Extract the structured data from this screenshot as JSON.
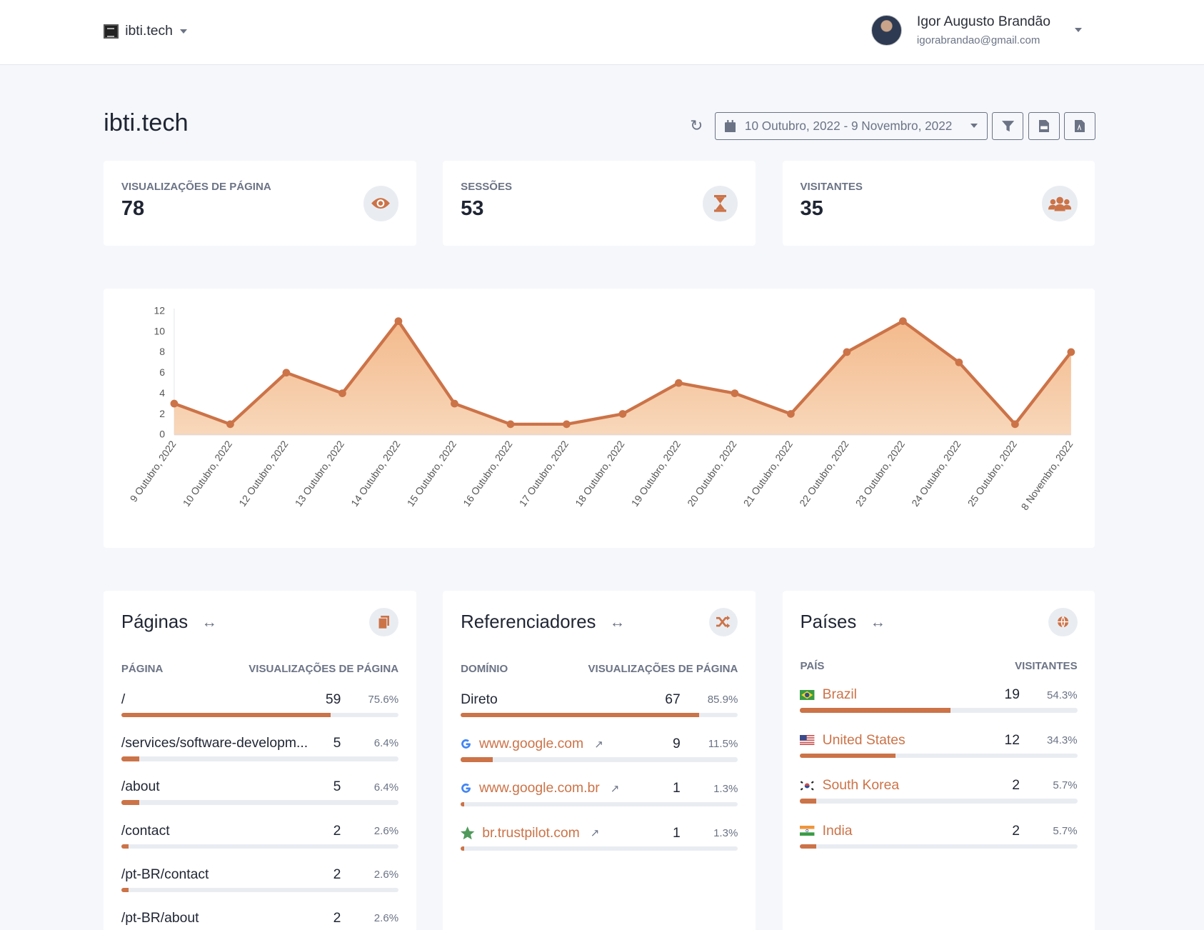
{
  "header": {
    "site": "ibti.tech",
    "user_name": "Igor Augusto Brandão",
    "user_email": "igorabrandao@gmail.com"
  },
  "page": {
    "title": "ibti.tech",
    "date_range": "10 Outubro, 2022 - 9 Novembro, 2022"
  },
  "stats": [
    {
      "label": "VISUALIZAÇÕES DE PÁGINA",
      "value": "78",
      "icon": "eye-icon"
    },
    {
      "label": "SESSÕES",
      "value": "53",
      "icon": "hourglass-icon"
    },
    {
      "label": "VISITANTES",
      "value": "35",
      "icon": "users-icon"
    }
  ],
  "accent": "#cc7348",
  "chart_data": {
    "type": "area",
    "x": [
      "9 Outubro, 2022",
      "10 Outubro, 2022",
      "12 Outubro, 2022",
      "13 Outubro, 2022",
      "14 Outubro, 2022",
      "15 Outubro, 2022",
      "16 Outubro, 2022",
      "17 Outubro, 2022",
      "18 Outubro, 2022",
      "19 Outubro, 2022",
      "20 Outubro, 2022",
      "21 Outubro, 2022",
      "22 Outubro, 2022",
      "23 Outubro, 2022",
      "24 Outubro, 2022",
      "25 Outubro, 2022",
      "8 Novembro, 2022"
    ],
    "values": [
      3,
      1,
      6,
      4,
      11,
      3,
      1,
      1,
      2,
      5,
      4,
      2,
      8,
      11,
      7,
      1,
      8
    ],
    "ylim": [
      0,
      12
    ],
    "yticks": [
      0,
      2,
      4,
      6,
      8,
      10,
      12
    ],
    "grid": false,
    "color": "#cc7348"
  },
  "pages": {
    "title": "Páginas",
    "col1": "PÁGINA",
    "col2": "VISUALIZAÇÕES DE PÁGINA",
    "rows": [
      {
        "name": "/",
        "count": "59",
        "pct": "75.6%",
        "frac": 0.756
      },
      {
        "name": "/services/software-developm...",
        "count": "5",
        "pct": "6.4%",
        "frac": 0.064
      },
      {
        "name": "/about",
        "count": "5",
        "pct": "6.4%",
        "frac": 0.064
      },
      {
        "name": "/contact",
        "count": "2",
        "pct": "2.6%",
        "frac": 0.026
      },
      {
        "name": "/pt-BR/contact",
        "count": "2",
        "pct": "2.6%",
        "frac": 0.026
      },
      {
        "name": "/pt-BR/about",
        "count": "2",
        "pct": "2.6%",
        "frac": 0.026
      }
    ]
  },
  "referrers": {
    "title": "Referenciadores",
    "col1": "DOMÍNIO",
    "col2": "VISUALIZAÇÕES DE PÁGINA",
    "rows": [
      {
        "name": "Direto",
        "count": "67",
        "pct": "85.9%",
        "frac": 0.859
      },
      {
        "name": "www.google.com",
        "count": "9",
        "pct": "11.5%",
        "frac": 0.115,
        "icon": "google-icon"
      },
      {
        "name": "www.google.com.br",
        "count": "1",
        "pct": "1.3%",
        "frac": 0.013,
        "icon": "google-icon"
      },
      {
        "name": "br.trustpilot.com",
        "count": "1",
        "pct": "1.3%",
        "frac": 0.013,
        "icon": "star-icon"
      }
    ]
  },
  "countries": {
    "title": "Países",
    "col1": "PAÍS",
    "col2": "VISITANTES",
    "rows": [
      {
        "name": "Brazil",
        "count": "19",
        "pct": "54.3%",
        "frac": 0.543,
        "icon": "flag-brazil-icon"
      },
      {
        "name": "United States",
        "count": "12",
        "pct": "34.3%",
        "frac": 0.343,
        "icon": "flag-us-icon"
      },
      {
        "name": "South Korea",
        "count": "2",
        "pct": "5.7%",
        "frac": 0.057,
        "icon": "flag-south-korea-icon"
      },
      {
        "name": "India",
        "count": "2",
        "pct": "5.7%",
        "frac": 0.057,
        "icon": "flag-india-icon"
      }
    ]
  }
}
